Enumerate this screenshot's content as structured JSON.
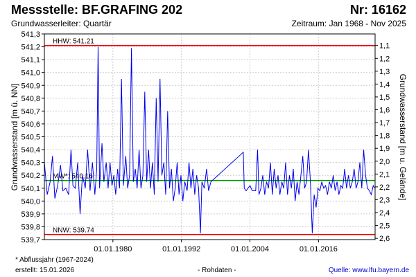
{
  "header": {
    "title": "Messstelle: BF.GRAFING 202",
    "number": "Nr: 16162",
    "aquifer": "Grundwasserleiter: Quartär",
    "period": "Zeitraum: Jan 1968 - Nov 2025"
  },
  "footer": {
    "note": "* Abflussjahr (1967-2024)",
    "created": "erstellt:  15.01.2026",
    "raw": "- Rohdaten -",
    "source": "Quelle:  www.lfu.bayern.de"
  },
  "colors": {
    "series": "#0000ee",
    "limit": "#ee0000",
    "mean": "#009900",
    "grid": "#cccccc"
  },
  "chart_data": {
    "type": "line",
    "ylabel_left": "Grundwasserstand [m ü. NN]",
    "ylabel_right": "Grundwasserstand [m u. Gelände]",
    "ylim": [
      539.7,
      541.3
    ],
    "y_ticks": [
      "541,3",
      "541,2",
      "541,1",
      "541,0",
      "540,9",
      "540,8",
      "540,7",
      "540,6",
      "540,5",
      "540,4",
      "540,3",
      "540,2",
      "540,1",
      "540,0",
      "539,9",
      "539,8",
      "539,7"
    ],
    "y_ticks_right": [
      "1,1",
      "1,2",
      "1,3",
      "1,4",
      "1,5",
      "1,6",
      "1,7",
      "1,8",
      "1,9",
      "2,0",
      "2,1",
      "2,2",
      "2,3",
      "2,4",
      "2,5",
      "2,6"
    ],
    "xlim": [
      "1968-01-01",
      "2025-11-30"
    ],
    "x_ticks": [
      {
        "label": "01.01.1980",
        "date": "1980-01-01"
      },
      {
        "label": "01.01.1992",
        "date": "1992-01-01"
      },
      {
        "label": "01.01.2004",
        "date": "2004-01-01"
      },
      {
        "label": "01.01.2016",
        "date": "2016-01-01"
      }
    ],
    "reference_lines": [
      {
        "label": "HHW: 541.21",
        "value": 541.21,
        "kind": "limit"
      },
      {
        "label": "MW*: 540.16",
        "value": 540.16,
        "kind": "mean"
      },
      {
        "label": "NNW: 539.74",
        "value": 539.74,
        "kind": "limit"
      }
    ],
    "series": [
      {
        "points": [
          [
            "1968-01-01",
            540.3
          ],
          [
            "1968-07-01",
            540.05
          ],
          [
            "1969-01-01",
            540.15
          ],
          [
            "1969-06-01",
            540.35
          ],
          [
            "1969-11-01",
            540.02
          ],
          [
            "1970-05-01",
            540.12
          ],
          [
            "1970-11-01",
            540.28
          ],
          [
            "1971-04-01",
            540.08
          ],
          [
            "1971-10-01",
            540.1
          ],
          [
            "1972-04-01",
            540.05
          ],
          [
            "1972-09-01",
            540.4
          ],
          [
            "1973-01-01",
            540.12
          ],
          [
            "1973-06-01",
            540.1
          ],
          [
            "1973-11-01",
            540.3
          ],
          [
            "1974-04-01",
            539.9
          ],
          [
            "1974-09-01",
            540.2
          ],
          [
            "1975-03-01",
            540.1
          ],
          [
            "1975-08-01",
            540.4
          ],
          [
            "1976-01-01",
            540.08
          ],
          [
            "1976-06-01",
            540.3
          ],
          [
            "1976-11-01",
            540.05
          ],
          [
            "1977-03-01",
            540.25
          ],
          [
            "1977-06-01",
            541.2
          ],
          [
            "1977-09-01",
            540.1
          ],
          [
            "1978-02-01",
            540.45
          ],
          [
            "1978-06-01",
            540.15
          ],
          [
            "1978-11-01",
            540.3
          ],
          [
            "1979-03-01",
            540.1
          ],
          [
            "1979-07-01",
            540.3
          ],
          [
            "1979-11-01",
            540.12
          ],
          [
            "1980-03-01",
            540.2
          ],
          [
            "1980-07-01",
            540.05
          ],
          [
            "1980-11-01",
            540.25
          ],
          [
            "1981-03-01",
            540.1
          ],
          [
            "1981-07-01",
            540.95
          ],
          [
            "1981-11-01",
            540.12
          ],
          [
            "1982-04-01",
            540.35
          ],
          [
            "1982-08-01",
            540.1
          ],
          [
            "1982-12-01",
            540.2
          ],
          [
            "1983-04-01",
            541.19
          ],
          [
            "1983-08-01",
            540.15
          ],
          [
            "1983-12-01",
            540.25
          ],
          [
            "1984-04-01",
            540.1
          ],
          [
            "1984-08-01",
            540.4
          ],
          [
            "1984-12-01",
            540.1
          ],
          [
            "1985-04-01",
            540.2
          ],
          [
            "1985-08-01",
            540.85
          ],
          [
            "1985-12-01",
            540.15
          ],
          [
            "1986-04-01",
            540.4
          ],
          [
            "1986-08-01",
            540.1
          ],
          [
            "1986-12-01",
            540.3
          ],
          [
            "1987-04-01",
            540.05
          ],
          [
            "1987-08-01",
            540.8
          ],
          [
            "1987-12-01",
            540.15
          ],
          [
            "1988-04-01",
            540.95
          ],
          [
            "1988-08-01",
            540.2
          ],
          [
            "1988-12-01",
            540.3
          ],
          [
            "1989-04-01",
            540.05
          ],
          [
            "1989-08-01",
            540.7
          ],
          [
            "1989-12-01",
            540.1
          ],
          [
            "1990-04-01",
            540.25
          ],
          [
            "1990-08-01",
            540.0
          ],
          [
            "1990-12-01",
            540.1
          ],
          [
            "1991-04-01",
            540.3
          ],
          [
            "1991-08-01",
            540.05
          ],
          [
            "1991-12-01",
            540.2
          ],
          [
            "1992-04-01",
            540.0
          ],
          [
            "1992-08-01",
            540.15
          ],
          [
            "1993-01-01",
            540.08
          ],
          [
            "1993-05-01",
            540.3
          ],
          [
            "1993-09-01",
            540.1
          ],
          [
            "1994-01-01",
            540.25
          ],
          [
            "1994-05-01",
            540.05
          ],
          [
            "1994-09-01",
            540.2
          ],
          [
            "1995-01-01",
            540.1
          ],
          [
            "1995-05-01",
            539.75
          ],
          [
            "1995-08-01",
            540.15
          ],
          [
            "1996-01-01",
            540.1
          ],
          [
            "1996-06-01",
            540.25
          ],
          [
            "1996-10-01",
            540.08
          ],
          [
            "1997-03-01",
            540.15
          ],
          [
            "2002-11-01",
            540.38
          ],
          [
            "2003-01-01",
            540.1
          ],
          [
            "2003-05-01",
            540.08
          ],
          [
            "2004-01-01",
            540.12
          ],
          [
            "2004-06-01",
            540.08
          ],
          [
            "2005-01-01",
            540.08
          ],
          [
            "2005-05-01",
            540.4
          ],
          [
            "2005-08-01",
            540.05
          ],
          [
            "2005-12-01",
            540.1
          ],
          [
            "2006-04-01",
            540.2
          ],
          [
            "2006-08-01",
            540.05
          ],
          [
            "2006-12-01",
            540.15
          ],
          [
            "2007-04-01",
            540.1
          ],
          [
            "2007-08-01",
            540.3
          ],
          [
            "2007-12-01",
            540.05
          ],
          [
            "2008-04-01",
            540.25
          ],
          [
            "2008-08-01",
            540.1
          ],
          [
            "2008-12-01",
            540.2
          ],
          [
            "2009-04-01",
            540.05
          ],
          [
            "2009-08-01",
            540.15
          ],
          [
            "2009-12-01",
            540.1
          ],
          [
            "2010-04-01",
            540.3
          ],
          [
            "2010-08-01",
            540.05
          ],
          [
            "2010-12-01",
            540.2
          ],
          [
            "2011-04-01",
            540.1
          ],
          [
            "2011-08-01",
            540.25
          ],
          [
            "2011-12-01",
            540.0
          ],
          [
            "2012-04-01",
            540.15
          ],
          [
            "2012-08-01",
            540.05
          ],
          [
            "2012-12-01",
            540.2
          ],
          [
            "2013-04-01",
            540.35
          ],
          [
            "2013-08-01",
            540.1
          ],
          [
            "2013-12-01",
            540.15
          ],
          [
            "2014-04-01",
            540.4
          ],
          [
            "2014-08-01",
            540.15
          ],
          [
            "2014-12-01",
            539.75
          ],
          [
            "2015-04-01",
            540.05
          ],
          [
            "2015-08-01",
            539.95
          ],
          [
            "2015-12-01",
            540.1
          ],
          [
            "2016-04-01",
            540.08
          ],
          [
            "2016-08-01",
            540.15
          ],
          [
            "2016-12-01",
            540.1
          ],
          [
            "2017-04-01",
            540.12
          ],
          [
            "2017-08-01",
            540.05
          ],
          [
            "2017-12-01",
            540.15
          ],
          [
            "2018-04-01",
            540.1
          ],
          [
            "2018-08-01",
            540.2
          ],
          [
            "2018-12-01",
            540.08
          ],
          [
            "2019-04-01",
            540.15
          ],
          [
            "2019-08-01",
            540.05
          ],
          [
            "2019-12-01",
            540.12
          ],
          [
            "2020-04-01",
            540.1
          ],
          [
            "2020-08-01",
            540.25
          ],
          [
            "2020-12-01",
            540.1
          ],
          [
            "2021-04-01",
            540.2
          ],
          [
            "2021-08-01",
            540.1
          ],
          [
            "2021-12-01",
            540.15
          ],
          [
            "2022-04-01",
            540.25
          ],
          [
            "2022-08-01",
            540.1
          ],
          [
            "2022-12-01",
            540.15
          ],
          [
            "2023-04-01",
            540.3
          ],
          [
            "2023-08-01",
            540.1
          ],
          [
            "2023-12-01",
            540.4
          ],
          [
            "2024-04-01",
            540.2
          ],
          [
            "2024-08-01",
            540.1
          ],
          [
            "2024-12-01",
            540.08
          ],
          [
            "2025-04-01",
            540.05
          ],
          [
            "2025-08-01",
            540.12
          ],
          [
            "2025-11-01",
            540.1
          ]
        ]
      }
    ]
  }
}
